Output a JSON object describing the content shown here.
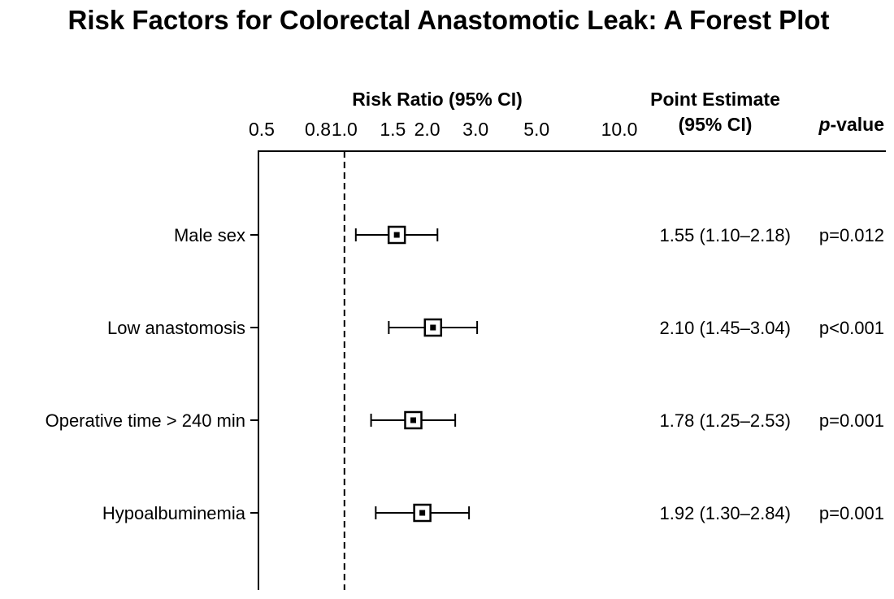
{
  "chart_data": {
    "type": "forest",
    "title": "Risk Factors for Colorectal Anastomotic Leak: A Forest Plot",
    "axis_header": "Risk Ratio (95% CI)",
    "estimate_header_line1": "Point Estimate",
    "estimate_header_line2": "(95% CI)",
    "pvalue_header_italic": "p",
    "pvalue_header_rest": "-value",
    "xscale": "log",
    "xlim": [
      0.5,
      10.0
    ],
    "reference_line": 1.0,
    "ticks": [
      {
        "value": 0.5,
        "label": "0.5"
      },
      {
        "value": 0.8,
        "label": "0.8"
      },
      {
        "value": 1.0,
        "label": "1.0"
      },
      {
        "value": 1.5,
        "label": "1.5"
      },
      {
        "value": 2.0,
        "label": "2.0"
      },
      {
        "value": 3.0,
        "label": "3.0"
      },
      {
        "value": 5.0,
        "label": "5.0"
      },
      {
        "value": 10.0,
        "label": "10.0"
      }
    ],
    "rows": [
      {
        "label": "Male sex",
        "estimate": 1.55,
        "lower": 1.1,
        "upper": 2.18,
        "est_text": "1.55 (1.10–2.18)",
        "p_text": "p=0.012"
      },
      {
        "label": "Low anastomosis",
        "estimate": 2.1,
        "lower": 1.45,
        "upper": 3.04,
        "est_text": "2.10 (1.45–3.04)",
        "p_text": "p<0.001"
      },
      {
        "label": "Operative time > 240 min",
        "estimate": 1.78,
        "lower": 1.25,
        "upper": 2.53,
        "est_text": "1.78 (1.25–2.53)",
        "p_text": "p=0.001"
      },
      {
        "label": "Hypoalbuminemia",
        "estimate": 1.92,
        "lower": 1.3,
        "upper": 2.84,
        "est_text": "1.92 (1.30–2.84)",
        "p_text": "p=0.001"
      }
    ]
  }
}
